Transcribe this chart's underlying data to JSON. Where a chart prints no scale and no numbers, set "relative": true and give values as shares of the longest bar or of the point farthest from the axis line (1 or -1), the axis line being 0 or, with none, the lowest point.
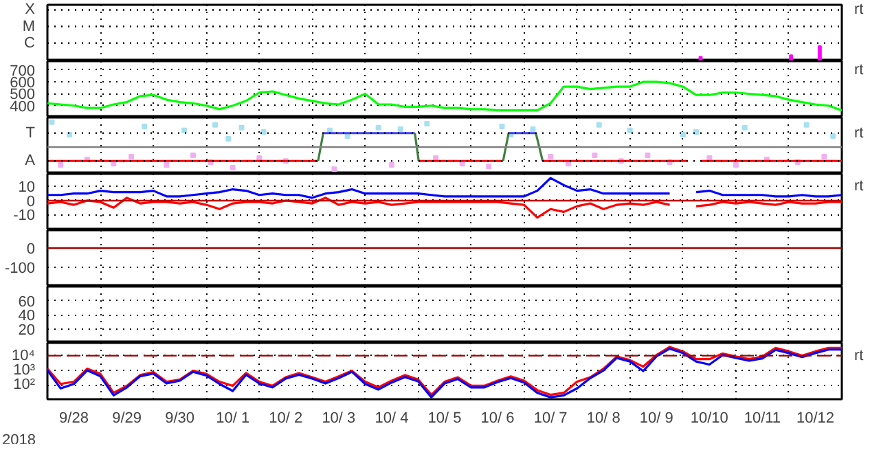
{
  "chart_data": [
    {
      "type": "bar",
      "relative": true,
      "grid": "x",
      "tick_labels": false,
      "annotations": [
        "rt"
      ],
      "xlim": [
        "2018-09-28T00:00",
        "2018-10-13T00:00"
      ],
      "xticks": [
        {
          "value": "2018-09-29T00:00",
          "label": null
        },
        {
          "value": "2018-09-30T00:00",
          "label": null
        },
        {
          "value": "2018-10-01T00:00",
          "label": null
        },
        {
          "value": "2018-10-02T00:00",
          "label": null
        },
        {
          "value": "2018-10-03T00:00",
          "label": null
        },
        {
          "value": "2018-10-04T00:00",
          "label": null
        },
        {
          "value": "2018-10-05T00:00",
          "label": null
        },
        {
          "value": "2018-10-06T00:00",
          "label": null
        },
        {
          "value": "2018-10-07T00:00",
          "label": null
        },
        {
          "value": "2018-10-08T00:00",
          "label": null
        },
        {
          "value": "2018-10-09T00:00",
          "label": null
        },
        {
          "value": "2018-10-10T00:00",
          "label": null
        },
        {
          "value": "2018-10-11T00:00",
          "label": null
        },
        {
          "value": "2018-10-12T00:00",
          "label": null
        }
      ],
      "ref_lines": [
        {
          "axis": "y",
          "value": 3.4,
          "label": "X",
          "color": "#000000",
          "line_style": "dotted"
        },
        {
          "axis": "y",
          "value": 2.3,
          "label": "M",
          "color": "#000000",
          "line_style": "dotted"
        },
        {
          "axis": "y",
          "value": 1.2,
          "label": "C",
          "color": "#000000",
          "line_style": "dotted"
        }
      ],
      "x": [
        "2018-10-10T08:00",
        "2018-10-12T01:00",
        "2018-10-12T14:00"
      ],
      "series": [
        {
          "color": "#ff00ff",
          "values": [
            0.3,
            0.4,
            1
          ]
        }
      ]
    },
    {
      "type": "line",
      "grid": true,
      "tick_labels": "y",
      "annotations": [
        "rt"
      ],
      "xlim": [
        "2018-09-28T00:00",
        "2018-10-13T00:00"
      ],
      "xticks": [
        {
          "value": "2018-09-29T00:00",
          "label": null
        },
        {
          "value": "2018-09-30T00:00",
          "label": null
        },
        {
          "value": "2018-10-01T00:00",
          "label": null
        },
        {
          "value": "2018-10-02T00:00",
          "label": null
        },
        {
          "value": "2018-10-03T00:00",
          "label": null
        },
        {
          "value": "2018-10-04T00:00",
          "label": null
        },
        {
          "value": "2018-10-05T00:00",
          "label": null
        },
        {
          "value": "2018-10-06T00:00",
          "label": null
        },
        {
          "value": "2018-10-07T00:00",
          "label": null
        },
        {
          "value": "2018-10-08T00:00",
          "label": null
        },
        {
          "value": "2018-10-09T00:00",
          "label": null
        },
        {
          "value": "2018-10-10T00:00",
          "label": null
        },
        {
          "value": "2018-10-11T00:00",
          "label": null
        },
        {
          "value": "2018-10-12T00:00",
          "label": null
        }
      ],
      "ylim": [
        300,
        775
      ],
      "yticks": [
        400,
        500,
        600,
        700
      ],
      "x": [
        "2018-09-28T00:00",
        "2018-09-28T06:00",
        "2018-09-28T12:00",
        "2018-09-28T18:00",
        "2018-09-29T00:00",
        "2018-09-29T06:00",
        "2018-09-29T12:00",
        "2018-09-29T18:00",
        "2018-09-30T00:00",
        "2018-09-30T06:00",
        "2018-09-30T12:00",
        "2018-09-30T18:00",
        "2018-10-01T00:00",
        "2018-10-01T06:00",
        "2018-10-01T12:00",
        "2018-10-01T18:00",
        "2018-10-02T00:00",
        "2018-10-02T06:00",
        "2018-10-02T12:00",
        "2018-10-02T18:00",
        "2018-10-03T00:00",
        "2018-10-03T06:00",
        "2018-10-03T12:00",
        "2018-10-03T18:00",
        "2018-10-04T00:00",
        "2018-10-04T06:00",
        "2018-10-04T12:00",
        "2018-10-04T18:00",
        "2018-10-05T00:00",
        "2018-10-05T06:00",
        "2018-10-05T12:00",
        "2018-10-05T18:00",
        "2018-10-06T00:00",
        "2018-10-06T06:00",
        "2018-10-06T12:00",
        "2018-10-06T18:00",
        "2018-10-07T00:00",
        "2018-10-07T06:00",
        "2018-10-07T12:00",
        "2018-10-07T18:00",
        "2018-10-08T00:00",
        "2018-10-08T06:00",
        "2018-10-08T12:00",
        "2018-10-08T18:00",
        "2018-10-09T00:00",
        "2018-10-09T06:00",
        "2018-10-09T12:00",
        "2018-10-09T18:00",
        "2018-10-10T00:00",
        "2018-10-10T06:00",
        "2018-10-10T12:00",
        "2018-10-10T18:00",
        "2018-10-11T00:00",
        "2018-10-11T06:00",
        "2018-10-11T12:00",
        "2018-10-11T18:00",
        "2018-10-12T00:00",
        "2018-10-12T06:00",
        "2018-10-12T12:00",
        "2018-10-12T18:00",
        "2018-10-13T00:00"
      ],
      "series": [
        {
          "color": "#00ff00",
          "values": [
            420,
            410,
            400,
            380,
            380,
            410,
            430,
            480,
            490,
            450,
            430,
            420,
            400,
            370,
            400,
            440,
            510,
            520,
            490,
            460,
            440,
            420,
            410,
            450,
            500,
            410,
            410,
            390,
            390,
            400,
            380,
            380,
            370,
            370,
            360,
            360,
            360,
            360,
            420,
            560,
            560,
            540,
            550,
            560,
            560,
            600,
            600,
            590,
            560,
            490,
            490,
            510,
            510,
            500,
            490,
            480,
            450,
            430,
            410,
            400,
            360
          ]
        }
      ]
    },
    {
      "type": "line",
      "relative": true,
      "grid": "x",
      "tick_labels": false,
      "annotations": [
        "rt"
      ],
      "xlim": [
        "2018-09-28T00:00",
        "2018-10-13T00:00"
      ],
      "xticks": [
        {
          "value": "2018-09-29T00:00",
          "label": null
        },
        {
          "value": "2018-09-30T00:00",
          "label": null
        },
        {
          "value": "2018-10-01T00:00",
          "label": null
        },
        {
          "value": "2018-10-02T00:00",
          "label": null
        },
        {
          "value": "2018-10-03T00:00",
          "label": null
        },
        {
          "value": "2018-10-04T00:00",
          "label": null
        },
        {
          "value": "2018-10-05T00:00",
          "label": null
        },
        {
          "value": "2018-10-06T00:00",
          "label": null
        },
        {
          "value": "2018-10-07T00:00",
          "label": null
        },
        {
          "value": "2018-10-08T00:00",
          "label": null
        },
        {
          "value": "2018-10-09T00:00",
          "label": null
        },
        {
          "value": "2018-10-10T00:00",
          "label": null
        },
        {
          "value": "2018-10-11T00:00",
          "label": null
        },
        {
          "value": "2018-10-12T00:00",
          "label": null
        }
      ],
      "ref_lines": [
        {
          "axis": "y",
          "value": 0,
          "color": "#808080"
        },
        {
          "axis": "y",
          "value": 0.56,
          "label": "T",
          "color": "#000000",
          "line_style": "dotted"
        },
        {
          "axis": "y",
          "value": -0.56,
          "label": "A",
          "color": "#000000",
          "line_style": "dotted"
        }
      ],
      "series": [
        {
          "type": "scatter",
          "marker": "square",
          "color": "#a8e0f0",
          "x": [
            "2018-09-28T02:00",
            "2018-09-28T10:00",
            "2018-09-29T20:00",
            "2018-09-30T14:00",
            "2018-10-01T04:00",
            "2018-10-01T10:00",
            "2018-10-01T16:00",
            "2018-10-02T02:00",
            "2018-10-03T08:00",
            "2018-10-03T16:00",
            "2018-10-04T06:00",
            "2018-10-04T16:00",
            "2018-10-05T04:00",
            "2018-10-06T14:00",
            "2018-10-06T18:00",
            "2018-10-07T04:00",
            "2018-10-08T10:00",
            "2018-10-09T00:00",
            "2018-10-10T00:00",
            "2018-10-10T06:00",
            "2018-10-11T04:00",
            "2018-10-12T08:00",
            "2018-10-12T20:00"
          ],
          "values": [
            1,
            0.5,
            0.83,
            0.67,
            0.89,
            0.33,
            0.78,
            0.61,
            0.67,
            0.44,
            0.78,
            0.72,
            0.94,
            0.83,
            0.5,
            0.72,
            0.89,
            0.67,
            0.5,
            0.61,
            0.78,
            0.89,
            0.44
          ]
        },
        {
          "type": "scatter",
          "marker": "square",
          "color": "#f0b0f0",
          "x": [
            "2018-09-28T06:00",
            "2018-09-28T18:00",
            "2018-09-29T06:00",
            "2018-09-29T14:00",
            "2018-09-30T06:00",
            "2018-09-30T18:00",
            "2018-10-01T02:00",
            "2018-10-01T12:00",
            "2018-10-02T00:00",
            "2018-10-02T12:00",
            "2018-10-03T10:00",
            "2018-10-04T12:00",
            "2018-10-05T08:00",
            "2018-10-05T20:00",
            "2018-10-06T08:00",
            "2018-10-07T12:00",
            "2018-10-07T20:00",
            "2018-10-08T08:00",
            "2018-10-08T20:00",
            "2018-10-09T08:00",
            "2018-10-09T18:00",
            "2018-10-10T12:00",
            "2018-10-11T00:00",
            "2018-10-11T14:00",
            "2018-10-12T04:00",
            "2018-10-12T16:00"
          ],
          "values": [
            -0.72,
            -0.5,
            -0.67,
            -0.39,
            -0.72,
            -0.33,
            -0.61,
            -0.83,
            -0.44,
            -0.56,
            -0.89,
            -0.72,
            -0.44,
            -0.67,
            -0.78,
            -0.39,
            -0.67,
            -0.33,
            -0.56,
            -0.33,
            -0.61,
            -0.44,
            -0.72,
            -0.5,
            -0.61,
            -0.39
          ]
        },
        {
          "color": "#ff0000",
          "x": [
            "2018-09-28T00:00",
            "2018-10-03T02:40",
            "2018-10-04T00:00",
            "2018-10-05T00:15",
            "2018-10-06T14:30",
            "2018-10-07T00:00",
            "2018-10-07T08:25",
            "2018-10-10T01:40",
            "2018-10-10T04:00",
            "2018-10-10T08:00",
            "2018-10-13T00:00"
          ],
          "values": [
            -0.56,
            -0.56,
            null,
            -0.56,
            -0.56,
            null,
            -0.56,
            -0.56,
            null,
            -0.56,
            -0.56
          ]
        },
        {
          "color": "#4040ff",
          "x": [
            "2018-10-03T05:00",
            "2018-10-04T22:30",
            "2018-10-06T00:00",
            "2018-10-06T17:00",
            "2018-10-07T05:20"
          ],
          "values": [
            0.56,
            0.56,
            null,
            0.56,
            0.56
          ]
        },
        {
          "color": "#408040",
          "x": [
            "2018-10-03T02:40",
            "2018-10-03T05:00",
            "2018-10-04T00:00",
            "2018-10-04T22:30",
            "2018-10-05T00:15",
            "2018-10-06T00:00",
            "2018-10-06T14:30",
            "2018-10-06T17:00",
            "2018-10-07T00:00",
            "2018-10-07T05:20",
            "2018-10-07T08:25"
          ],
          "values": [
            -0.56,
            0.56,
            null,
            0.56,
            -0.56,
            null,
            -0.56,
            0.56,
            null,
            0.56,
            -0.56
          ]
        }
      ]
    },
    {
      "type": "line",
      "grid": true,
      "tick_labels": "y",
      "annotations": [
        "rt"
      ],
      "xlim": [
        "2018-09-28T00:00",
        "2018-10-13T00:00"
      ],
      "xticks": [
        {
          "value": "2018-09-29T00:00",
          "label": null
        },
        {
          "value": "2018-09-30T00:00",
          "label": null
        },
        {
          "value": "2018-10-01T00:00",
          "label": null
        },
        {
          "value": "2018-10-02T00:00",
          "label": null
        },
        {
          "value": "2018-10-03T00:00",
          "label": null
        },
        {
          "value": "2018-10-04T00:00",
          "label": null
        },
        {
          "value": "2018-10-05T00:00",
          "label": null
        },
        {
          "value": "2018-10-06T00:00",
          "label": null
        },
        {
          "value": "2018-10-07T00:00",
          "label": null
        },
        {
          "value": "2018-10-08T00:00",
          "label": null
        },
        {
          "value": "2018-10-09T00:00",
          "label": null
        },
        {
          "value": "2018-10-10T00:00",
          "label": null
        },
        {
          "value": "2018-10-11T00:00",
          "label": null
        },
        {
          "value": "2018-10-12T00:00",
          "label": null
        }
      ],
      "ylim": [
        -21,
        19
      ],
      "yticks": [
        10,
        0,
        -10
      ],
      "ref_lines": [
        {
          "axis": "y",
          "value": 0,
          "color": "#c00000"
        }
      ],
      "x": [
        "2018-09-28T00:00",
        "2018-09-28T06:00",
        "2018-09-28T12:00",
        "2018-09-28T18:00",
        "2018-09-29T00:00",
        "2018-09-29T06:00",
        "2018-09-29T12:00",
        "2018-09-29T18:00",
        "2018-09-30T00:00",
        "2018-09-30T06:00",
        "2018-09-30T12:00",
        "2018-09-30T18:00",
        "2018-10-01T00:00",
        "2018-10-01T06:00",
        "2018-10-01T12:00",
        "2018-10-01T18:00",
        "2018-10-02T00:00",
        "2018-10-02T06:00",
        "2018-10-02T12:00",
        "2018-10-02T18:00",
        "2018-10-03T00:00",
        "2018-10-03T06:00",
        "2018-10-03T12:00",
        "2018-10-03T18:00",
        "2018-10-04T00:00",
        "2018-10-04T06:00",
        "2018-10-04T12:00",
        "2018-10-04T18:00",
        "2018-10-05T00:00",
        "2018-10-05T06:00",
        "2018-10-05T12:00",
        "2018-10-05T18:00",
        "2018-10-06T00:00",
        "2018-10-06T06:00",
        "2018-10-06T12:00",
        "2018-10-06T18:00",
        "2018-10-07T00:00",
        "2018-10-07T06:00",
        "2018-10-07T12:00",
        "2018-10-07T18:00",
        "2018-10-08T00:00",
        "2018-10-08T06:00",
        "2018-10-08T12:00",
        "2018-10-08T18:00",
        "2018-10-09T00:00",
        "2018-10-09T06:00",
        "2018-10-09T12:00",
        "2018-10-09T18:00",
        "2018-10-10T00:00",
        "2018-10-10T06:00",
        "2018-10-10T12:00",
        "2018-10-10T18:00",
        "2018-10-11T00:00",
        "2018-10-11T06:00",
        "2018-10-11T12:00",
        "2018-10-11T18:00",
        "2018-10-12T00:00",
        "2018-10-12T06:00",
        "2018-10-12T12:00",
        "2018-10-12T18:00",
        "2018-10-13T00:00"
      ],
      "series": [
        {
          "color": "#ff0000",
          "values": [
            -2,
            -1,
            -3,
            0,
            -1,
            -5,
            2,
            -2,
            -1,
            -1,
            -2,
            -1,
            -3,
            -6,
            -2,
            -1,
            -1,
            -2,
            0,
            -1,
            -2,
            2,
            -3,
            -1,
            -2,
            -1,
            -3,
            -2,
            -1,
            -1,
            -1,
            -1,
            -1,
            -1,
            -1,
            -2,
            -3,
            -12,
            -6,
            -8,
            -4,
            -2,
            -6,
            -3,
            -2,
            -3,
            -1,
            -3,
            null,
            -4,
            -3,
            -1,
            -2,
            -1,
            -2,
            -3,
            -1,
            -2,
            -2,
            -1,
            -1
          ]
        },
        {
          "color": "#0000ff",
          "values": [
            4,
            4,
            5,
            5,
            7,
            6,
            6,
            6,
            7,
            3,
            3,
            4,
            5,
            6,
            8,
            7,
            4,
            5,
            4,
            4,
            2,
            5,
            6,
            8,
            5,
            5,
            5,
            5,
            5,
            4,
            3,
            3,
            3,
            3,
            3,
            3,
            3,
            7,
            16,
            11,
            7,
            8,
            5,
            5,
            5,
            5,
            5,
            5,
            null,
            6,
            7,
            4,
            4,
            4,
            4,
            3,
            3,
            4,
            3,
            3,
            4
          ]
        }
      ]
    },
    {
      "type": "line",
      "grid": true,
      "tick_labels": "y",
      "xlim": [
        "2018-09-28T00:00",
        "2018-10-13T00:00"
      ],
      "xticks": [
        {
          "value": "2018-09-29T00:00",
          "label": null
        },
        {
          "value": "2018-09-30T00:00",
          "label": null
        },
        {
          "value": "2018-10-01T00:00",
          "label": null
        },
        {
          "value": "2018-10-02T00:00",
          "label": null
        },
        {
          "value": "2018-10-03T00:00",
          "label": null
        },
        {
          "value": "2018-10-04T00:00",
          "label": null
        },
        {
          "value": "2018-10-05T00:00",
          "label": null
        },
        {
          "value": "2018-10-06T00:00",
          "label": null
        },
        {
          "value": "2018-10-07T00:00",
          "label": null
        },
        {
          "value": "2018-10-08T00:00",
          "label": null
        },
        {
          "value": "2018-10-09T00:00",
          "label": null
        },
        {
          "value": "2018-10-10T00:00",
          "label": null
        },
        {
          "value": "2018-10-11T00:00",
          "label": null
        },
        {
          "value": "2018-10-12T00:00",
          "label": null
        }
      ],
      "ylim": [
        -200,
        93
      ],
      "yticks": [
        0,
        -100
      ],
      "ref_lines": [
        {
          "axis": "y",
          "value": 0,
          "color": "#a00000"
        }
      ]
    },
    {
      "type": "line",
      "grid": true,
      "tick_labels": "y",
      "xlim": [
        "2018-09-28T00:00",
        "2018-10-13T00:00"
      ],
      "xticks": [
        {
          "value": "2018-09-29T00:00",
          "label": null
        },
        {
          "value": "2018-09-30T00:00",
          "label": null
        },
        {
          "value": "2018-10-01T00:00",
          "label": null
        },
        {
          "value": "2018-10-02T00:00",
          "label": null
        },
        {
          "value": "2018-10-03T00:00",
          "label": null
        },
        {
          "value": "2018-10-04T00:00",
          "label": null
        },
        {
          "value": "2018-10-05T00:00",
          "label": null
        },
        {
          "value": "2018-10-06T00:00",
          "label": null
        },
        {
          "value": "2018-10-07T00:00",
          "label": null
        },
        {
          "value": "2018-10-08T00:00",
          "label": null
        },
        {
          "value": "2018-10-09T00:00",
          "label": null
        },
        {
          "value": "2018-10-10T00:00",
          "label": null
        },
        {
          "value": "2018-10-11T00:00",
          "label": null
        },
        {
          "value": "2018-10-12T00:00",
          "label": null
        }
      ],
      "ylim": [
        0,
        80
      ],
      "yticks": [
        20,
        40,
        60
      ]
    },
    {
      "type": "line",
      "grid": true,
      "log": "y",
      "xlabel": "2018",
      "annotations": [
        "rt"
      ],
      "xlim": [
        "2018-09-28T00:00",
        "2018-10-13T00:00"
      ],
      "xticks": [
        {
          "value": "2018-09-28T12:00",
          "label": "9/28"
        },
        {
          "value": "2018-09-29T00:00",
          "label": null
        },
        {
          "value": "2018-09-29T12:00",
          "label": "9/29"
        },
        {
          "value": "2018-09-30T00:00",
          "label": null
        },
        {
          "value": "2018-09-30T12:00",
          "label": "9/30"
        },
        {
          "value": "2018-10-01T00:00",
          "label": null
        },
        {
          "value": "2018-10-01T12:00",
          "label": "10/ 1"
        },
        {
          "value": "2018-10-02T00:00",
          "label": null
        },
        {
          "value": "2018-10-02T12:00",
          "label": "10/ 2"
        },
        {
          "value": "2018-10-03T00:00",
          "label": null
        },
        {
          "value": "2018-10-03T12:00",
          "label": "10/ 3"
        },
        {
          "value": "2018-10-04T00:00",
          "label": null
        },
        {
          "value": "2018-10-04T12:00",
          "label": "10/ 4"
        },
        {
          "value": "2018-10-05T00:00",
          "label": null
        },
        {
          "value": "2018-10-05T12:00",
          "label": "10/ 5"
        },
        {
          "value": "2018-10-06T00:00",
          "label": null
        },
        {
          "value": "2018-10-06T12:00",
          "label": "10/ 6"
        },
        {
          "value": "2018-10-07T00:00",
          "label": null
        },
        {
          "value": "2018-10-07T12:00",
          "label": "10/ 7"
        },
        {
          "value": "2018-10-08T00:00",
          "label": null
        },
        {
          "value": "2018-10-08T12:00",
          "label": "10/ 8"
        },
        {
          "value": "2018-10-09T00:00",
          "label": null
        },
        {
          "value": "2018-10-09T12:00",
          "label": "10/ 9"
        },
        {
          "value": "2018-10-10T00:00",
          "label": null
        },
        {
          "value": "2018-10-10T12:00",
          "label": "10/10"
        },
        {
          "value": "2018-10-11T00:00",
          "label": null
        },
        {
          "value": "2018-10-11T12:00",
          "label": "10/11"
        },
        {
          "value": "2018-10-12T00:00",
          "label": null
        },
        {
          "value": "2018-10-12T12:00",
          "label": "10/12"
        }
      ],
      "ylim": [
        11,
        74000
      ],
      "yticks": [
        {
          "value": 100,
          "label": "10²"
        },
        {
          "value": 1000,
          "label": "10³"
        },
        {
          "value": 10000,
          "label": "10⁴"
        }
      ],
      "ref_lines": [
        {
          "axis": "y",
          "value": 10000,
          "color": "#a00000",
          "line_style": "dashed"
        }
      ],
      "x": [
        "2018-09-28T00:00",
        "2018-09-28T06:00",
        "2018-09-28T12:00",
        "2018-09-28T18:00",
        "2018-09-29T00:00",
        "2018-09-29T06:00",
        "2018-09-29T12:00",
        "2018-09-29T18:00",
        "2018-09-30T00:00",
        "2018-09-30T06:00",
        "2018-09-30T12:00",
        "2018-09-30T18:00",
        "2018-10-01T00:00",
        "2018-10-01T06:00",
        "2018-10-01T12:00",
        "2018-10-01T18:00",
        "2018-10-02T00:00",
        "2018-10-02T06:00",
        "2018-10-02T12:00",
        "2018-10-02T18:00",
        "2018-10-03T00:00",
        "2018-10-03T06:00",
        "2018-10-03T12:00",
        "2018-10-03T18:00",
        "2018-10-04T00:00",
        "2018-10-04T06:00",
        "2018-10-04T12:00",
        "2018-10-04T18:00",
        "2018-10-05T00:00",
        "2018-10-05T06:00",
        "2018-10-05T12:00",
        "2018-10-05T18:00",
        "2018-10-06T00:00",
        "2018-10-06T06:00",
        "2018-10-06T12:00",
        "2018-10-06T18:00",
        "2018-10-07T00:00",
        "2018-10-07T06:00",
        "2018-10-07T12:00",
        "2018-10-07T18:00",
        "2018-10-08T00:00",
        "2018-10-08T06:00",
        "2018-10-08T12:00",
        "2018-10-08T18:00",
        "2018-10-09T00:00",
        "2018-10-09T06:00",
        "2018-10-09T12:00",
        "2018-10-09T18:00",
        "2018-10-10T00:00",
        "2018-10-10T06:00",
        "2018-10-10T12:00",
        "2018-10-10T18:00",
        "2018-10-11T00:00",
        "2018-10-11T06:00",
        "2018-10-11T12:00",
        "2018-10-11T18:00",
        "2018-10-12T00:00",
        "2018-10-12T06:00",
        "2018-10-12T12:00",
        "2018-10-12T18:00",
        "2018-10-13T00:00"
      ],
      "series": [
        {
          "color": "#ff0000",
          "values": [
            1300,
            120,
            170,
            1300,
            580,
            30,
            90,
            480,
            760,
            170,
            240,
            940,
            580,
            170,
            90,
            660,
            170,
            90,
            340,
            660,
            340,
            170,
            390,
            940,
            170,
            70,
            200,
            480,
            240,
            22,
            170,
            340,
            90,
            90,
            200,
            390,
            200,
            45,
            22,
            30,
            170,
            340,
            1300,
            8700,
            5000,
            1800,
            11000,
            39000,
            19500,
            5800,
            5800,
            14000,
            8700,
            5800,
            8700,
            34000,
            19500,
            10000,
            19500,
            34000,
            34000
          ]
        },
        {
          "color": "#0000ff",
          "values": [
            1000,
            60,
            120,
            1000,
            400,
            20,
            70,
            400,
            600,
            130,
            200,
            800,
            450,
            120,
            40,
            500,
            130,
            70,
            280,
            500,
            280,
            130,
            300,
            800,
            120,
            50,
            150,
            350,
            180,
            15,
            130,
            260,
            70,
            70,
            160,
            300,
            150,
            30,
            15,
            20,
            60,
            300,
            1000,
            7000,
            4000,
            900,
            9000,
            30000,
            15000,
            4000,
            2500,
            11000,
            7000,
            4500,
            6500,
            25000,
            15000,
            8000,
            15000,
            26000,
            26000
          ]
        }
      ]
    }
  ]
}
